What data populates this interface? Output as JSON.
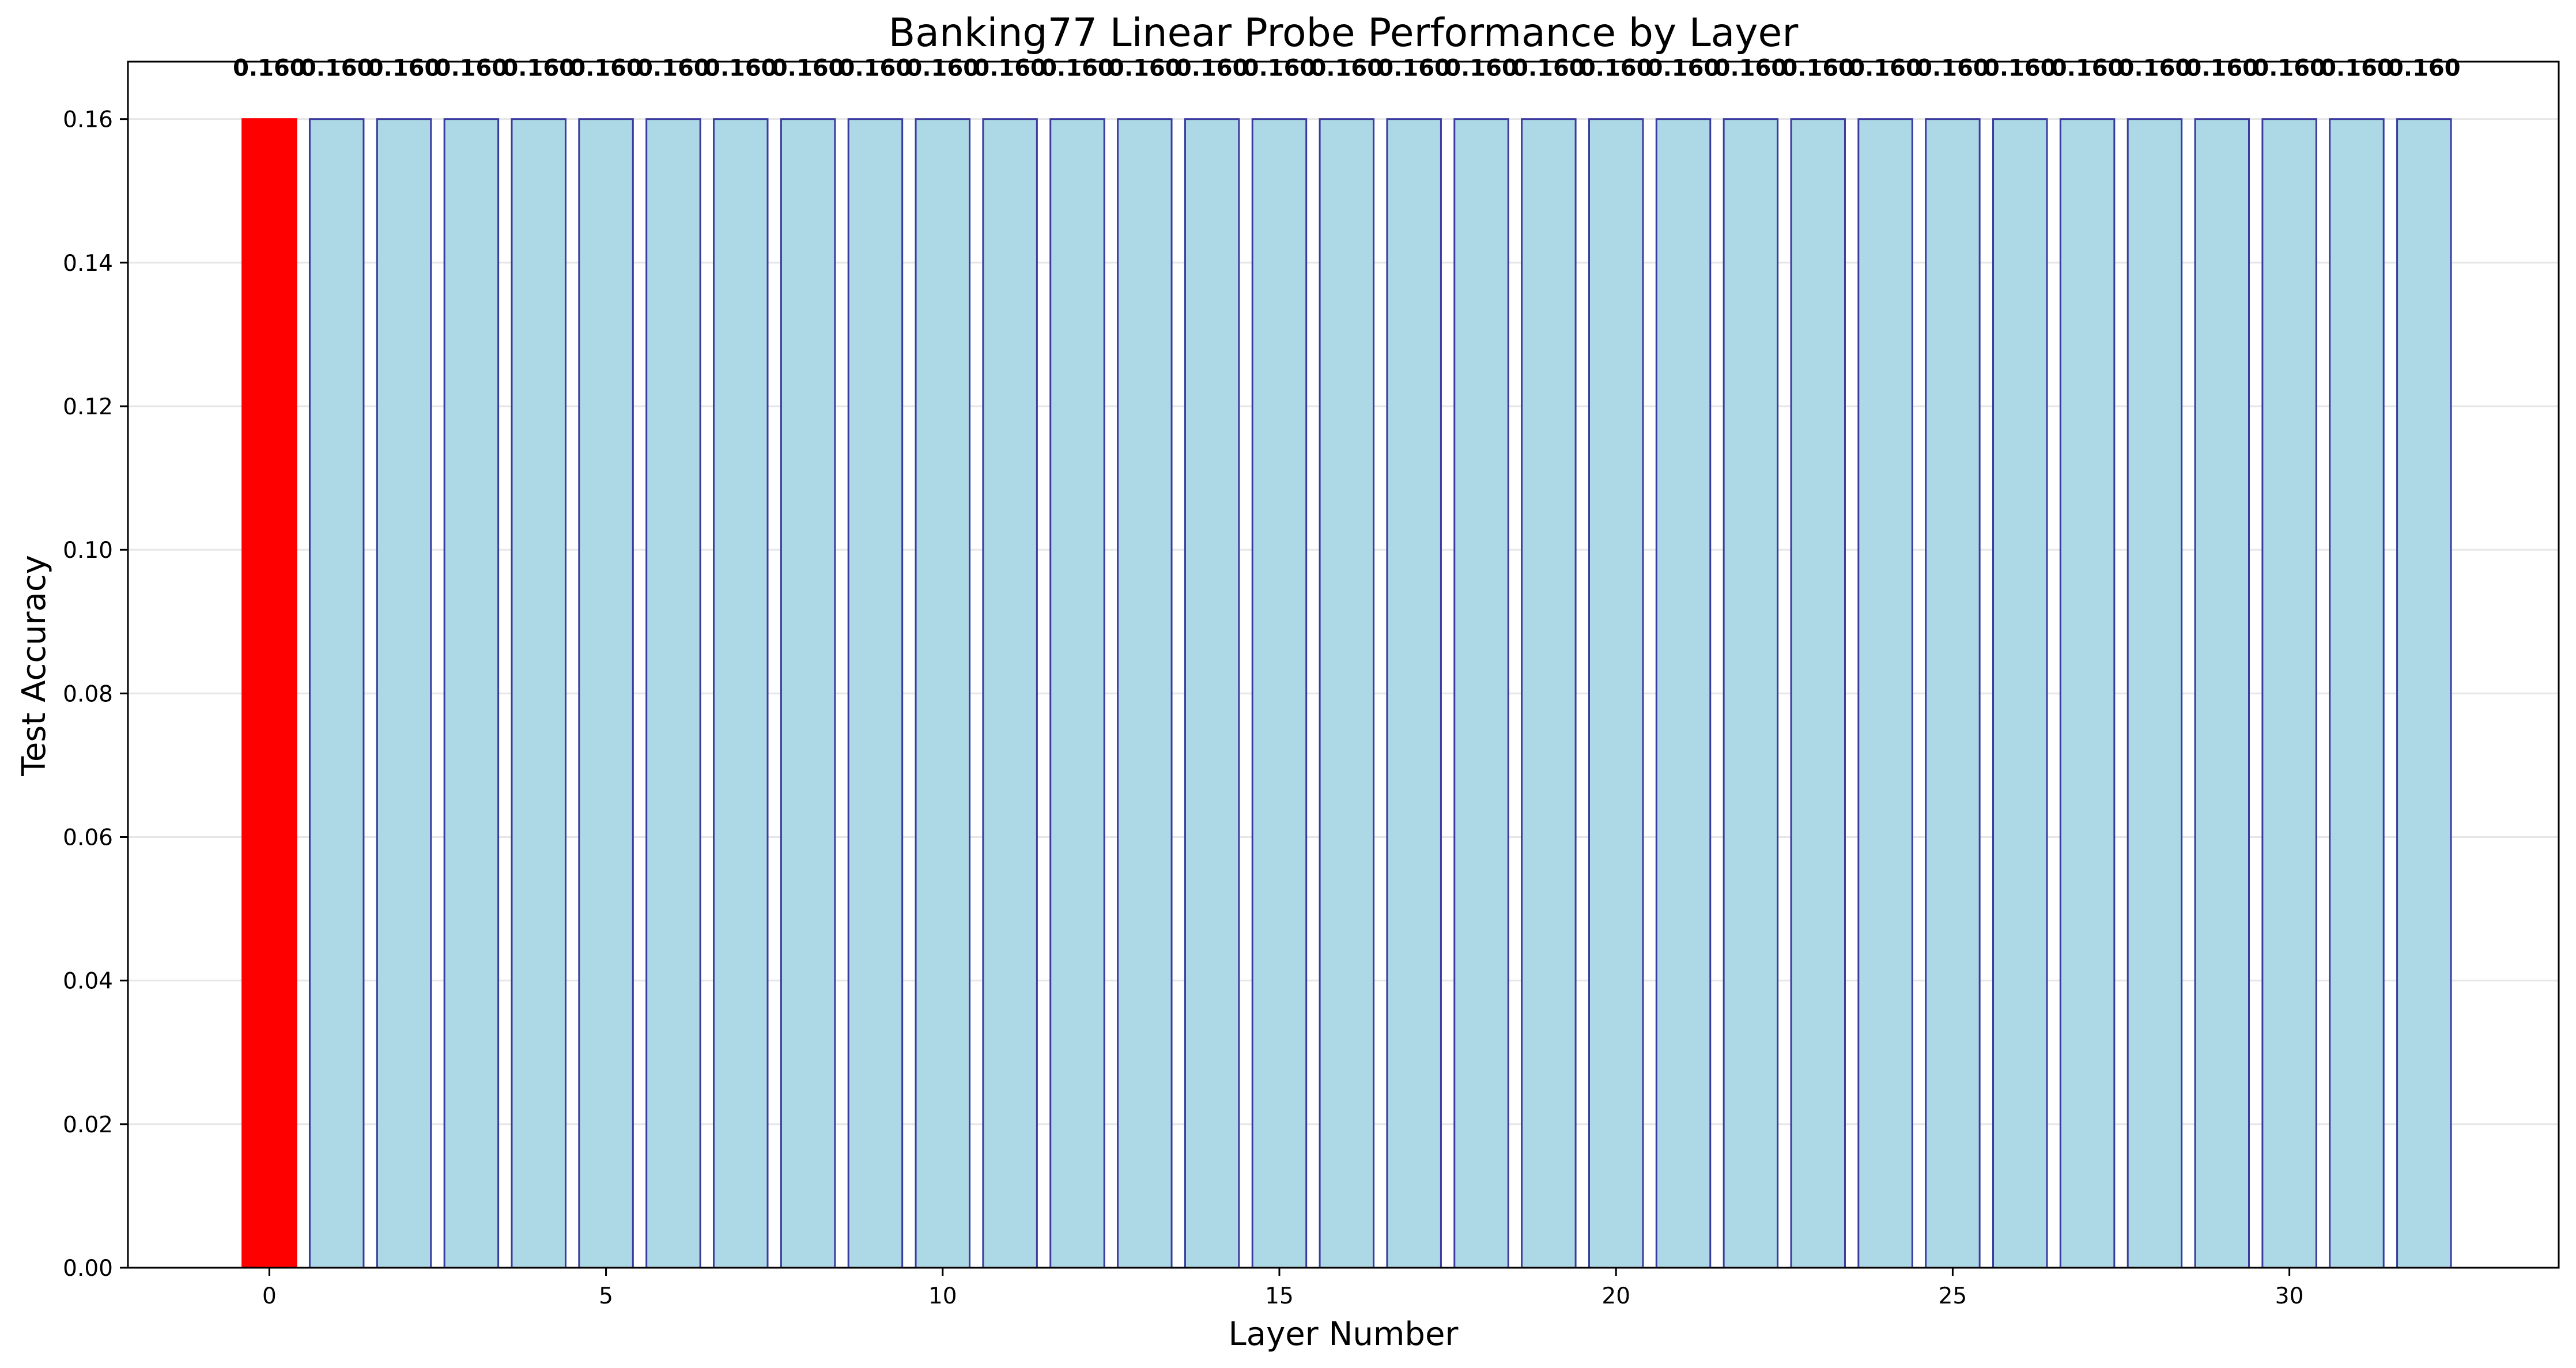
{
  "chart_data": {
    "type": "bar",
    "title": "Banking77 Linear Probe Performance by Layer",
    "xlabel": "Layer Number",
    "ylabel": "Test Accuracy",
    "x": [
      0,
      1,
      2,
      3,
      4,
      5,
      6,
      7,
      8,
      9,
      10,
      11,
      12,
      13,
      14,
      15,
      16,
      17,
      18,
      19,
      20,
      21,
      22,
      23,
      24,
      25,
      26,
      27,
      28,
      29,
      30,
      31,
      32
    ],
    "values": [
      0.16,
      0.16,
      0.16,
      0.16,
      0.16,
      0.16,
      0.16,
      0.16,
      0.16,
      0.16,
      0.16,
      0.16,
      0.16,
      0.16,
      0.16,
      0.16,
      0.16,
      0.16,
      0.16,
      0.16,
      0.16,
      0.16,
      0.16,
      0.16,
      0.16,
      0.16,
      0.16,
      0.16,
      0.16,
      0.16,
      0.16,
      0.16,
      0.16
    ],
    "data_labels": [
      "0.160",
      "0.160",
      "0.160",
      "0.160",
      "0.160",
      "0.160",
      "0.160",
      "0.160",
      "0.160",
      "0.160",
      "0.160",
      "0.160",
      "0.160",
      "0.160",
      "0.160",
      "0.160",
      "0.160",
      "0.160",
      "0.160",
      "0.160",
      "0.160",
      "0.160",
      "0.160",
      "0.160",
      "0.160",
      "0.160",
      "0.160",
      "0.160",
      "0.160",
      "0.160",
      "0.160",
      "0.160",
      "0.160"
    ],
    "highlight_index": 0,
    "xticks": [
      0,
      5,
      10,
      15,
      20,
      25,
      30
    ],
    "xtick_labels": [
      "0",
      "5",
      "10",
      "15",
      "20",
      "25",
      "30"
    ],
    "yticks": [
      0.0,
      0.02,
      0.04,
      0.06,
      0.08,
      0.1,
      0.12,
      0.14,
      0.16
    ],
    "ytick_labels": [
      "0.00",
      "0.02",
      "0.04",
      "0.06",
      "0.08",
      "0.10",
      "0.12",
      "0.14",
      "0.16"
    ],
    "xlim": [
      -2.1,
      34.0
    ],
    "ylim": [
      0,
      0.168
    ],
    "grid": "y",
    "colors": {
      "bar_fill": "#add8e6",
      "bar_edge": "#3a3aa0",
      "highlight_fill": "#ff0000",
      "grid": "#e6e6e6",
      "axis": "#000000"
    }
  }
}
